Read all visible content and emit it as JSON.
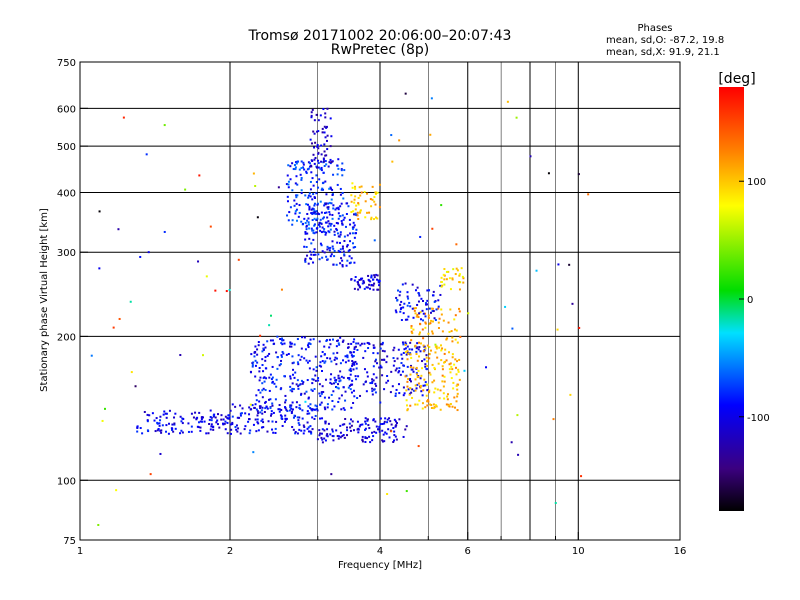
{
  "chart_data": {
    "type": "scatter",
    "title": "Tromsø 20171002 20:06:00–20:07:43",
    "subtitle": "RwPretec (8p)",
    "xlabel": "Frequency [MHz]",
    "ylabel": "Stationary phase Virtual Height [km]",
    "x_scale": "log",
    "y_scale": "log",
    "xlim": [
      1,
      16
    ],
    "ylim": [
      75,
      750
    ],
    "x_ticks": [
      1,
      2,
      4,
      6,
      10,
      16
    ],
    "x_tick_labels": [
      "1",
      "2",
      "4",
      "6",
      "10",
      "16"
    ],
    "x_minor": [
      3,
      5,
      7,
      8,
      9
    ],
    "x_major_grid": [
      2,
      4,
      6,
      8,
      10
    ],
    "x_minor_grid": [
      3,
      5,
      7,
      9
    ],
    "y_ticks": [
      75,
      100,
      200,
      300,
      400,
      500,
      600,
      750
    ],
    "y_tick_labels": [
      "75",
      "100",
      "200",
      "300",
      "400",
      "500",
      "600",
      "750"
    ],
    "y_grid": [
      100,
      200,
      300,
      400,
      500,
      600
    ],
    "grid": true,
    "legend": {
      "title": "Phases",
      "line1": "mean, sd,O: -87.2, 19.8",
      "line2": "mean, sd,X:  91.9, 21.1"
    },
    "colorbar": {
      "label": "[deg]",
      "range": [
        -180,
        180
      ],
      "ticks": [
        100,
        0,
        -100
      ],
      "tick_labels": [
        "100",
        "0",
        "-100"
      ]
    },
    "clusters": [
      {
        "f": [
          1.3,
          2.0
        ],
        "h": [
          125,
          140
        ],
        "phase": -100,
        "n": 120
      },
      {
        "f": [
          2.0,
          3.0
        ],
        "h": [
          125,
          145
        ],
        "phase": -95,
        "n": 140
      },
      {
        "f": [
          2.2,
          3.6
        ],
        "h": [
          140,
          200
        ],
        "phase": -90,
        "n": 320
      },
      {
        "f": [
          3.0,
          4.5
        ],
        "h": [
          120,
          135
        ],
        "phase": -105,
        "n": 130
      },
      {
        "f": [
          3.4,
          5.0
        ],
        "h": [
          150,
          195
        ],
        "phase": -100,
        "n": 180
      },
      {
        "f": [
          2.6,
          3.4
        ],
        "h": [
          330,
          470
        ],
        "phase": -80,
        "n": 200
      },
      {
        "f": [
          2.8,
          3.6
        ],
        "h": [
          280,
          380
        ],
        "phase": -92,
        "n": 160
      },
      {
        "f": [
          2.9,
          3.2
        ],
        "h": [
          450,
          600
        ],
        "phase": -110,
        "n": 60
      },
      {
        "f": [
          3.5,
          4.0
        ],
        "h": [
          250,
          270
        ],
        "phase": -105,
        "n": 50
      },
      {
        "f": [
          3.5,
          4.0
        ],
        "h": [
          350,
          420
        ],
        "phase": 100,
        "n": 50
      },
      {
        "f": [
          4.5,
          5.8
        ],
        "h": [
          140,
          195
        ],
        "phase": 105,
        "n": 160
      },
      {
        "f": [
          4.6,
          5.8
        ],
        "h": [
          195,
          230
        ],
        "phase": 110,
        "n": 60
      },
      {
        "f": [
          4.3,
          5.3
        ],
        "h": [
          215,
          260
        ],
        "phase": -95,
        "n": 70
      },
      {
        "f": [
          5.3,
          5.9
        ],
        "h": [
          250,
          280
        ],
        "phase": 95,
        "n": 30
      },
      {
        "f": [
          1.0,
          10.5
        ],
        "h": [
          80,
          650
        ],
        "phase": 0,
        "n": 90,
        "sparse": true
      }
    ]
  }
}
